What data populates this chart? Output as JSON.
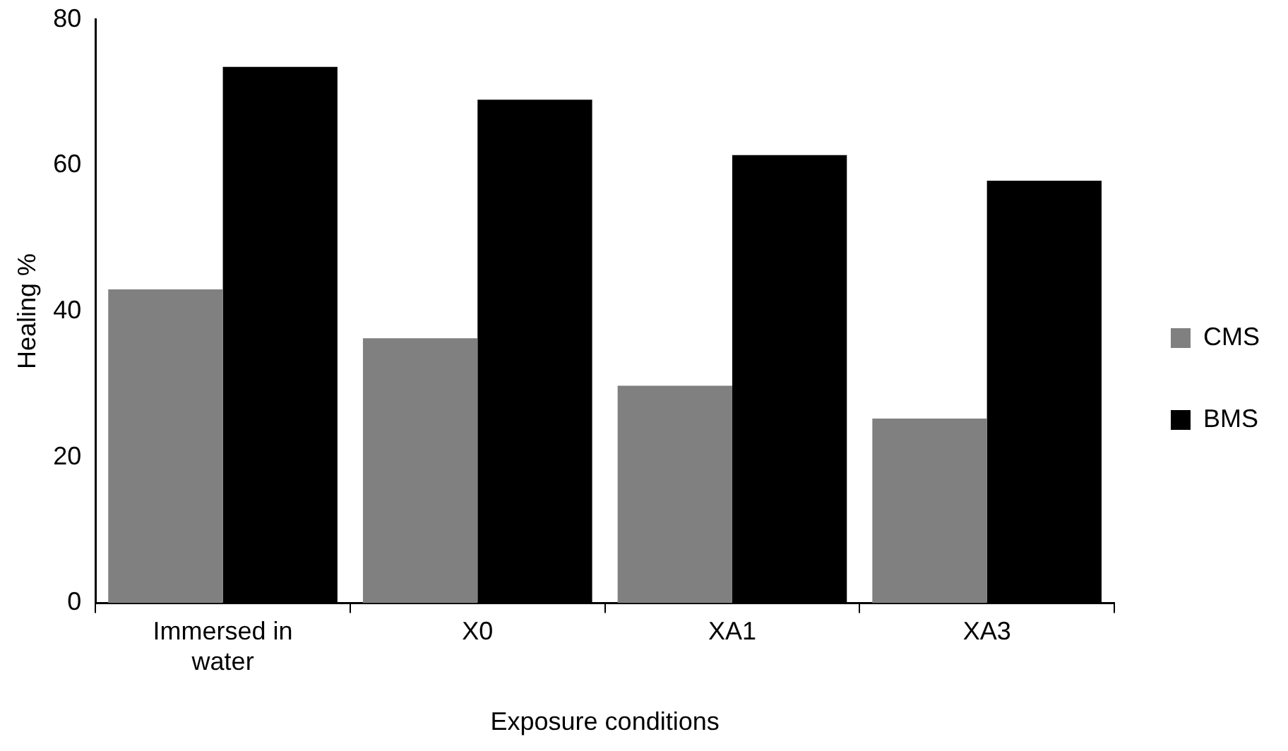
{
  "chart_data": {
    "type": "bar",
    "xlabel": "Exposure conditions",
    "ylabel": "Healing %",
    "categories": [
      "Immersed in water",
      "X0",
      "XA1",
      "XA3"
    ],
    "series": [
      {
        "name": "CMS",
        "color": "#808080",
        "values": [
          43.0,
          36.3,
          29.8,
          25.3
        ]
      },
      {
        "name": "BMS",
        "color": "#000000",
        "values": [
          73.5,
          69.0,
          61.4,
          57.9
        ]
      }
    ],
    "ylim": [
      0,
      80
    ],
    "yticks": [
      0,
      20,
      40,
      60,
      80
    ],
    "grid": false,
    "legend": "right"
  }
}
